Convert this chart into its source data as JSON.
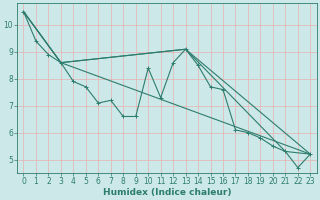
{
  "xlabel": "Humidex (Indice chaleur)",
  "ylabel": "",
  "xlim": [
    -0.5,
    23.5
  ],
  "ylim": [
    4.5,
    10.8
  ],
  "yticks": [
    5,
    6,
    7,
    8,
    9,
    10
  ],
  "xticks": [
    0,
    1,
    2,
    3,
    4,
    5,
    6,
    7,
    8,
    9,
    10,
    11,
    12,
    13,
    14,
    15,
    16,
    17,
    18,
    19,
    20,
    21,
    22,
    23
  ],
  "bg_color": "#cce8e8",
  "line_color": "#2d7d6e",
  "grid_color_minor": "#e8b0b0",
  "grid_color_major": "#b8d8d8",
  "lines": [
    {
      "x": [
        0,
        1,
        2,
        3,
        4,
        5,
        6,
        7,
        8,
        9,
        10,
        11,
        12,
        13,
        14,
        15,
        16,
        17,
        18,
        19,
        20,
        21,
        22,
        23
      ],
      "y": [
        10.5,
        9.4,
        8.9,
        8.6,
        7.9,
        7.7,
        7.1,
        7.2,
        6.6,
        6.6,
        8.4,
        7.3,
        8.6,
        9.1,
        8.5,
        7.7,
        7.6,
        6.1,
        6.0,
        5.8,
        5.5,
        5.3,
        4.7,
        5.2
      ],
      "marker": true
    },
    {
      "x": [
        0,
        3,
        23
      ],
      "y": [
        10.5,
        8.6,
        5.2
      ],
      "marker": false
    },
    {
      "x": [
        0,
        3,
        13,
        23
      ],
      "y": [
        10.5,
        8.6,
        9.1,
        5.2
      ],
      "marker": false
    },
    {
      "x": [
        0,
        3,
        13,
        21,
        23
      ],
      "y": [
        10.5,
        8.6,
        9.1,
        5.3,
        5.2
      ],
      "marker": false
    }
  ]
}
